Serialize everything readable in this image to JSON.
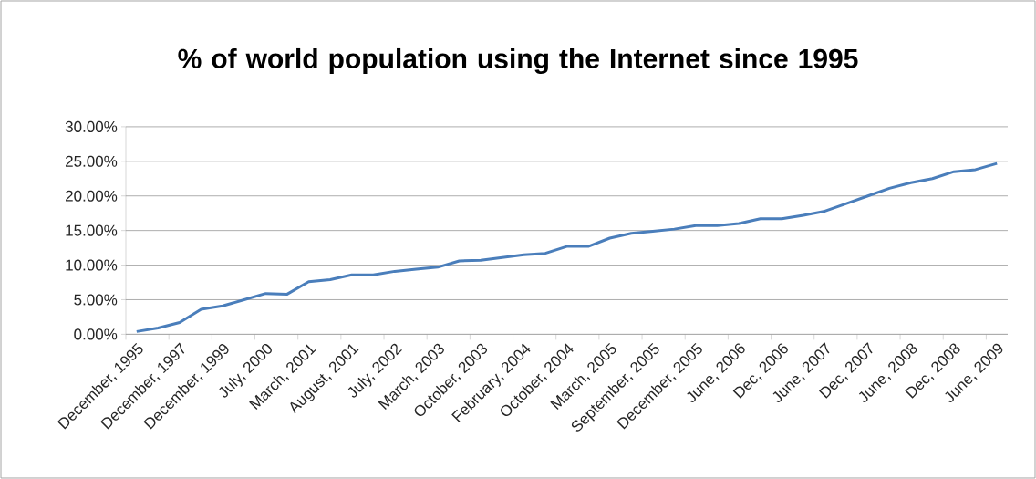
{
  "chart_data": {
    "type": "line",
    "title": "% of world population using the Internet since 1995",
    "categories": [
      "December, 1995",
      null,
      "December, 1997",
      null,
      "December, 1999",
      null,
      "July, 2000",
      null,
      "March, 2001",
      null,
      "August, 2001",
      null,
      "July, 2002",
      null,
      "March, 2003",
      null,
      "October, 2003",
      null,
      "February, 2004",
      null,
      "October, 2004",
      null,
      "March, 2005",
      null,
      "September, 2005",
      null,
      "December, 2005",
      null,
      "June, 2006",
      null,
      "Dec, 2006",
      null,
      "June, 2007",
      null,
      "Dec, 2007",
      null,
      "June, 2008",
      null,
      "Dec, 2008",
      null,
      "June, 2009"
    ],
    "values": [
      0.4,
      0.9,
      1.7,
      3.6,
      4.1,
      5.0,
      5.9,
      5.8,
      7.6,
      7.9,
      8.6,
      8.6,
      9.1,
      9.4,
      9.7,
      10.6,
      10.7,
      11.1,
      11.5,
      11.7,
      12.7,
      12.7,
      13.9,
      14.6,
      14.9,
      15.2,
      15.7,
      15.7,
      16.0,
      16.7,
      16.7,
      17.2,
      17.8,
      18.9,
      20.0,
      21.1,
      21.9,
      22.5,
      23.5,
      23.8,
      24.7
    ],
    "color": "#4a7ebb",
    "ylim": [
      0,
      30
    ],
    "yticks": [
      {
        "value": 0,
        "label": "0.00%"
      },
      {
        "value": 5,
        "label": "5.00%"
      },
      {
        "value": 10,
        "label": "10.00%"
      },
      {
        "value": 15,
        "label": "15.00%"
      },
      {
        "value": 20,
        "label": "20.00%"
      },
      {
        "value": 25,
        "label": "25.00%"
      },
      {
        "value": 30,
        "label": "30.00%"
      }
    ],
    "grid": "y",
    "marker": "none",
    "line_style": "solid"
  }
}
